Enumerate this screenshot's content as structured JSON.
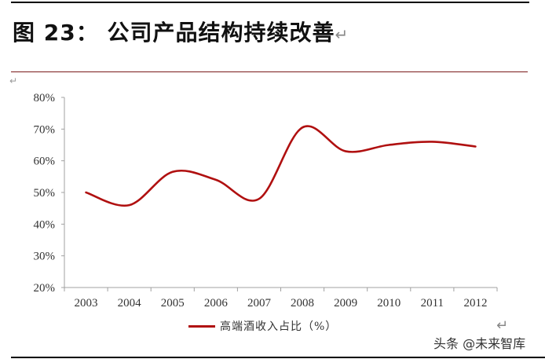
{
  "header": {
    "title": "图 23： 公司产品结构持续改善",
    "return_mark": "↵"
  },
  "chart_data": {
    "type": "line",
    "title": "图 23： 公司产品结构持续改善",
    "xlabel": "",
    "ylabel": "",
    "categories": [
      "2003",
      "2004",
      "2005",
      "2006",
      "2007",
      "2008",
      "2009",
      "2010",
      "2011",
      "2012"
    ],
    "series": [
      {
        "name": "高端酒收入占比（%）",
        "values": [
          50,
          46,
          56.5,
          54,
          48,
          70.5,
          63,
          65,
          66,
          64.5
        ],
        "color": "#b01010"
      }
    ],
    "ylim": [
      20,
      80
    ],
    "yticks": [
      "80%",
      "70%",
      "60%",
      "50%",
      "40%",
      "30%",
      "20%"
    ],
    "grid": false,
    "smooth": true,
    "legend_position": "bottom"
  },
  "legend": {
    "label": "高端酒收入占比（%）"
  },
  "footer": {
    "watermark": "头条 @未来智库",
    "return_mark": "↵"
  },
  "colors": {
    "line": "#b01010",
    "rule": "#7a1a1a",
    "axis": "#a0a0a0"
  }
}
